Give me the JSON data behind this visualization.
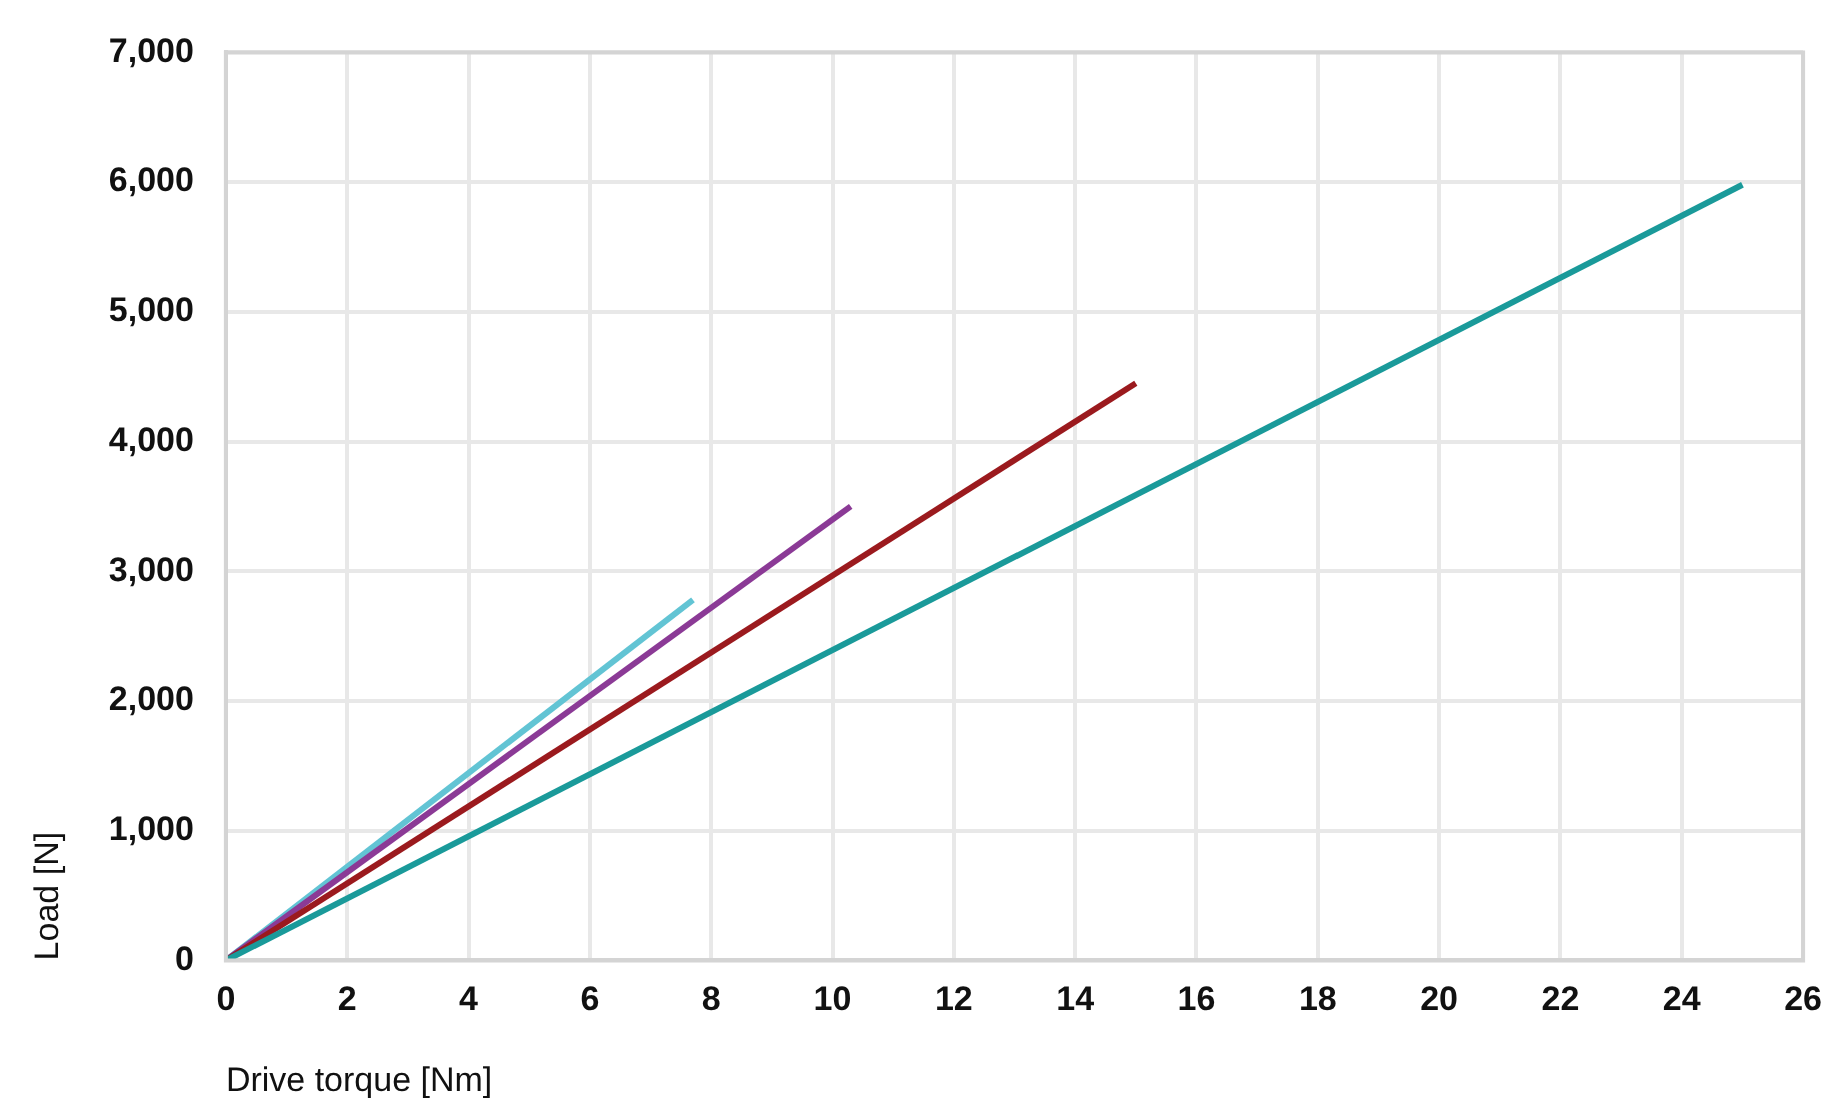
{
  "chart_data": {
    "type": "line",
    "xlabel": "Drive torque [Nm]",
    "ylabel": "Load [N]",
    "xlim": [
      0,
      26
    ],
    "xticks": [
      0,
      2,
      4,
      6,
      8,
      10,
      12,
      14,
      16,
      18,
      20,
      22,
      24,
      26
    ],
    "ylim": [
      0,
      7000
    ],
    "yticks": [
      {
        "value": 0,
        "label": "0"
      },
      {
        "value": 1000,
        "label": "1,000"
      },
      {
        "value": 2000,
        "label": "2,000"
      },
      {
        "value": 3000,
        "label": "3,000"
      },
      {
        "value": 4000,
        "label": "4,000"
      },
      {
        "value": 5000,
        "label": "5,000"
      },
      {
        "value": 6000,
        "label": "6,000"
      },
      {
        "value": 7000,
        "label": "7,000"
      }
    ],
    "grid": true,
    "legend": false,
    "marker": "none",
    "line_style": "solid",
    "series": [
      {
        "color": "#1a9a9a",
        "x": [
          0,
          25
        ],
        "values": [
          0,
          5980
        ]
      },
      {
        "color": "#9b1a1e",
        "x": [
          0,
          15
        ],
        "values": [
          0,
          4450
        ]
      },
      {
        "color": "#8b3a96",
        "x": [
          0,
          10.3
        ],
        "values": [
          0,
          3500
        ]
      },
      {
        "color": "#62c4d4",
        "x": [
          0,
          7.7
        ],
        "values": [
          0,
          2780
        ]
      }
    ]
  }
}
